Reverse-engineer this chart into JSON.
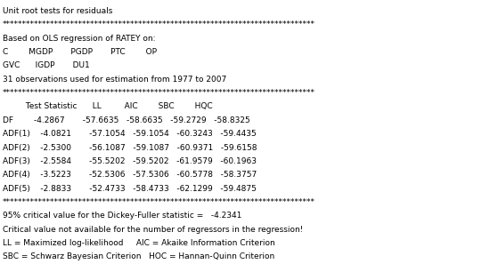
{
  "lines": [
    "Unit root tests for residuals",
    "******************************************************************************",
    "Based on OLS regression of RATEY on:",
    "C        MGDP       PGDP       PTC        OP",
    "GVC      IGDP       DU1",
    "31 observations used for estimation from 1977 to 2007",
    "******************************************************************************"
  ],
  "header_label": "         Test Statistic      LL         AIC        SBC        HQC",
  "rows": [
    "DF        -4.2867       -57.6635   -58.6635   -59.2729   -58.8325",
    "ADF(1)    -4.0821       -57.1054   -59.1054   -60.3243   -59.4435",
    "ADF(2)    -2.5300       -56.1087   -59.1087   -60.9371   -59.6158",
    "ADF(3)    -2.5584       -55.5202   -59.5202   -61.9579   -60.1963",
    "ADF(4)    -3.5223       -52.5306   -57.5306   -60.5778   -58.3757",
    "ADF(5)    -2.8833       -52.4733   -58.4733   -62.1299   -59.4875"
  ],
  "footer_lines": [
    "******************************************************************************",
    "95% critical value for the Dickey-Fuller statistic =   -4.2341",
    "Critical value not available for the number of regressors in the regression!",
    "LL = Maximized log-likelihood     AIC = Akaike Information Criterion",
    "SBC = Schwarz Bayesian Criterion   HOC = Hannan-Quinn Criterion"
  ],
  "bg_color": "#ffffff",
  "text_color": "#000000",
  "font_size": 6.5,
  "stars": "******************************************************************************"
}
